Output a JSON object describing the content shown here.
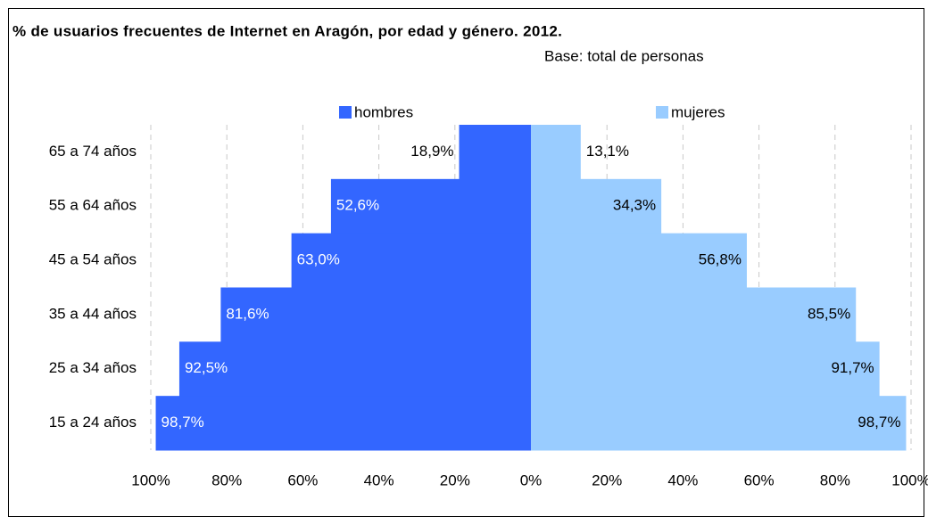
{
  "chart_data": {
    "type": "bar",
    "orientation": "horizontal",
    "title": "% de usuarios frecuentes de Internet en Aragón, por edad y género. 2012.",
    "subtitle": "Base: total de personas",
    "categories": [
      "65 a 74 años",
      "55 a 64 años",
      "45 a 54 años",
      "35 a 44 años",
      "25 a 34 años",
      "15 a 24 años"
    ],
    "series": [
      {
        "name": "hombres",
        "color": "#3366ff",
        "values": [
          -18.9,
          -52.6,
          -63.0,
          -81.6,
          -92.5,
          -98.7
        ],
        "value_labels": [
          "18,9%",
          "52,6%",
          "63,0%",
          "81,6%",
          "92,5%",
          "98,7%"
        ]
      },
      {
        "name": "mujeres",
        "color": "#99ccff",
        "values": [
          13.1,
          34.3,
          56.8,
          85.5,
          91.7,
          98.7
        ],
        "value_labels": [
          "13,1%",
          "34,3%",
          "56,8%",
          "85,5%",
          "91,7%",
          "98,7%"
        ]
      }
    ],
    "xlim": [
      -100,
      100
    ],
    "xticks": [
      {
        "value": -100,
        "label": "100%"
      },
      {
        "value": -80,
        "label": "80%"
      },
      {
        "value": -60,
        "label": "60%"
      },
      {
        "value": -40,
        "label": "40%"
      },
      {
        "value": -20,
        "label": "20%"
      },
      {
        "value": 0,
        "label": "0%"
      },
      {
        "value": 20,
        "label": "20%"
      },
      {
        "value": 40,
        "label": "40%"
      },
      {
        "value": 60,
        "label": "60%"
      },
      {
        "value": 80,
        "label": "80%"
      },
      {
        "value": 100,
        "label": "100%"
      }
    ],
    "grid": true
  }
}
